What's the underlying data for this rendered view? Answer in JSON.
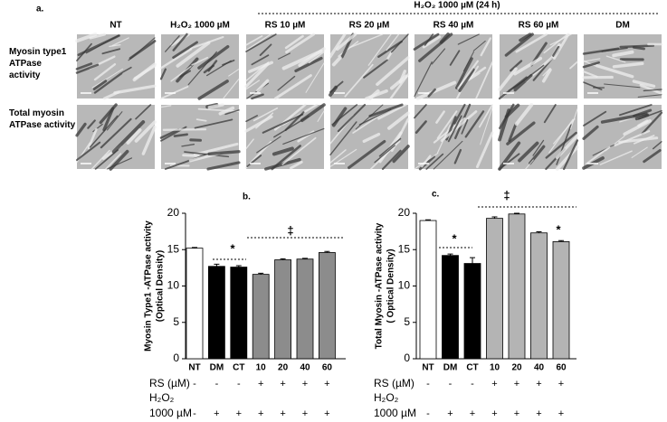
{
  "panel_a": {
    "label": "a.",
    "group_header": "H₂O₂ 1000 µM (24 h)",
    "columns": [
      "NT",
      "H₂O₂  1000 µM",
      "RS 10 µM",
      "RS 20 µM",
      "RS 40 µM",
      "RS 60 µM",
      "DM"
    ],
    "rows": [
      "Myosin type1 ATPase activity",
      "Total myosin ATPase activity"
    ]
  },
  "chart_data": [
    {
      "type": "bar",
      "panel_label": "b.",
      "y_label": [
        "Myosin Type1 -ATPase activity",
        "(Optical Density)"
      ],
      "categories": [
        "NT",
        "DM",
        "CT",
        "10",
        "20",
        "40",
        "60"
      ],
      "values": [
        15.2,
        12.7,
        12.6,
        11.6,
        13.6,
        13.7,
        14.6
      ],
      "errors": [
        0.1,
        0.3,
        0.2,
        0.15,
        0.15,
        0.1,
        0.15
      ],
      "colors": [
        "#ffffff",
        "#000000",
        "#000000",
        "#8c8c8c",
        "#8c8c8c",
        "#8c8c8c",
        "#8c8c8c"
      ],
      "ylim": [
        0,
        20
      ],
      "yticks": [
        0,
        5,
        10,
        15,
        20
      ],
      "annotations": [
        "*",
        "‡"
      ],
      "rs_label": "RS (µM)",
      "rs_signs": [
        "-",
        "-",
        "-",
        "+",
        "+",
        "+",
        "+"
      ],
      "h2o2_label": [
        "H₂O₂",
        "1000 µM"
      ],
      "h2o2_signs": [
        "-",
        "+",
        "+",
        "+",
        "+",
        "+",
        "+"
      ]
    },
    {
      "type": "bar",
      "panel_label": "c.",
      "y_label": [
        "Total  Myosin -ATPase activity",
        "( Optical Density)"
      ],
      "categories": [
        "NT",
        "DM",
        "CT",
        "10",
        "20",
        "40",
        "60"
      ],
      "values": [
        19.0,
        14.2,
        13.1,
        19.3,
        19.9,
        17.3,
        16.1
      ],
      "errors": [
        0.1,
        0.2,
        0.8,
        0.2,
        0.1,
        0.15,
        0.15
      ],
      "colors": [
        "#ffffff",
        "#000000",
        "#000000",
        "#b4b4b4",
        "#b4b4b4",
        "#b4b4b4",
        "#b4b4b4"
      ],
      "ylim": [
        0,
        20
      ],
      "yticks": [
        0,
        5,
        10,
        15,
        20
      ],
      "annotations": [
        "*",
        "‡",
        "*"
      ],
      "rs_label": "RS (µM)",
      "rs_signs": [
        "-",
        "-",
        "-",
        "+",
        "+",
        "+",
        "+"
      ],
      "h2o2_label": [
        "H₂O₂",
        "1000 µM"
      ],
      "h2o2_signs": [
        "-",
        "+",
        "+",
        "+",
        "+",
        "+",
        "+"
      ]
    }
  ]
}
